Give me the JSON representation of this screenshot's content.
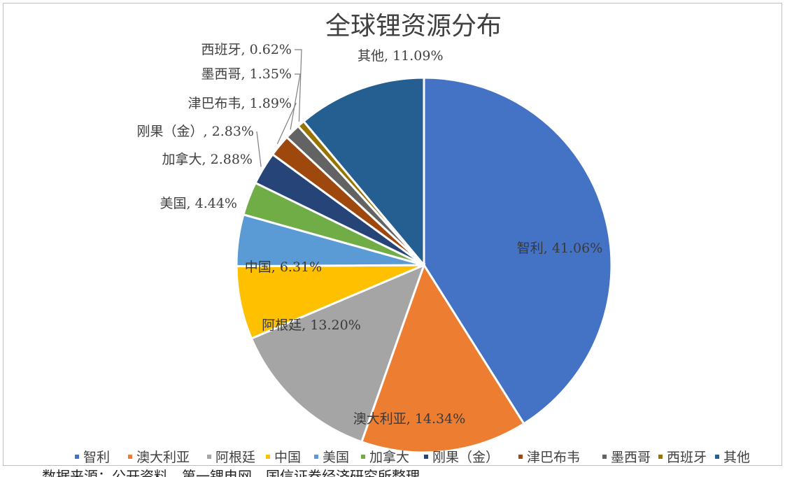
{
  "chart_data": {
    "type": "pie",
    "title": "全球锂资源分布",
    "categories": [
      "智利",
      "澳大利亚",
      "阿根廷",
      "中国",
      "美国",
      "加拿大",
      "刚果（金）",
      "津巴布韦",
      "墨西哥",
      "西班牙",
      "其他"
    ],
    "values": [
      41.06,
      14.34,
      13.2,
      6.31,
      4.44,
      2.88,
      2.83,
      1.89,
      1.35,
      0.62,
      11.09
    ],
    "value_labels": [
      "智利, 41.06%",
      "澳大利亚, 14.34%",
      "阿根廷, 13.20%",
      "中国, 6.31%",
      "美国, 4.44%",
      "加拿大, 2.88%",
      "刚果（金）, 2.83%",
      "津巴布韦, 1.89%",
      "墨西哥, 1.35%",
      "西班牙, 0.62%",
      "其他, 11.09%"
    ],
    "colors": [
      "#4472C4",
      "#ED7D31",
      "#A5A5A5",
      "#FFC000",
      "#5B9BD5",
      "#70AD47",
      "#264478",
      "#9E480E",
      "#636363",
      "#997300",
      "#255E91"
    ],
    "legend_placement": "bottom",
    "unit": "%"
  },
  "footer_text": "数据来源：公开资料，第一锂电网，国信证券经济研究所整理"
}
